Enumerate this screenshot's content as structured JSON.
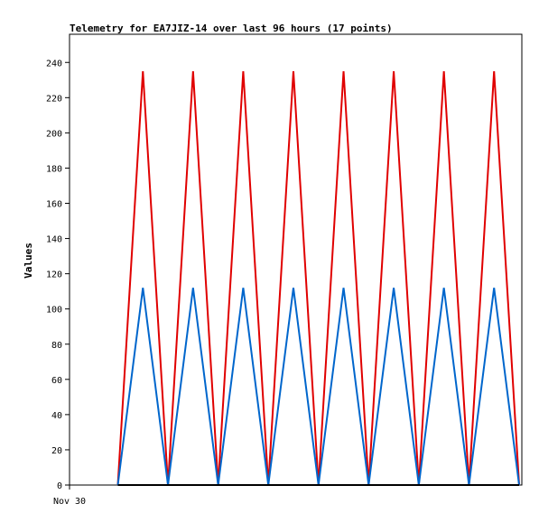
{
  "chart_data": {
    "type": "line",
    "title": "Telemetry for EA7JIZ-14 over last 96 hours (17 points)",
    "xlabel": "",
    "ylabel": "Values",
    "x_tick_labels": [
      "Nov 30"
    ],
    "ylim": [
      0,
      256
    ],
    "y_ticks": [
      0,
      20,
      40,
      60,
      80,
      100,
      120,
      140,
      160,
      180,
      200,
      220,
      240
    ],
    "grid": false,
    "legend": "none",
    "x": [
      1,
      2,
      3,
      4,
      5,
      6,
      7,
      8,
      9,
      10,
      11,
      12,
      13,
      14,
      15,
      16,
      17
    ],
    "series": [
      {
        "color": "#e00000",
        "values": [
          0,
          235,
          0,
          235,
          0,
          235,
          0,
          235,
          0,
          235,
          0,
          235,
          0,
          235,
          0,
          235,
          0
        ]
      },
      {
        "color": "#0066cc",
        "values": [
          0,
          112,
          0,
          112,
          0,
          112,
          0,
          112,
          0,
          112,
          0,
          112,
          0,
          112,
          0,
          112,
          0
        ]
      },
      {
        "color": "#000000",
        "values": [
          0,
          0,
          0,
          0,
          0,
          0,
          0,
          0,
          0,
          0,
          0,
          0,
          0,
          0,
          0,
          0,
          0
        ]
      }
    ]
  }
}
